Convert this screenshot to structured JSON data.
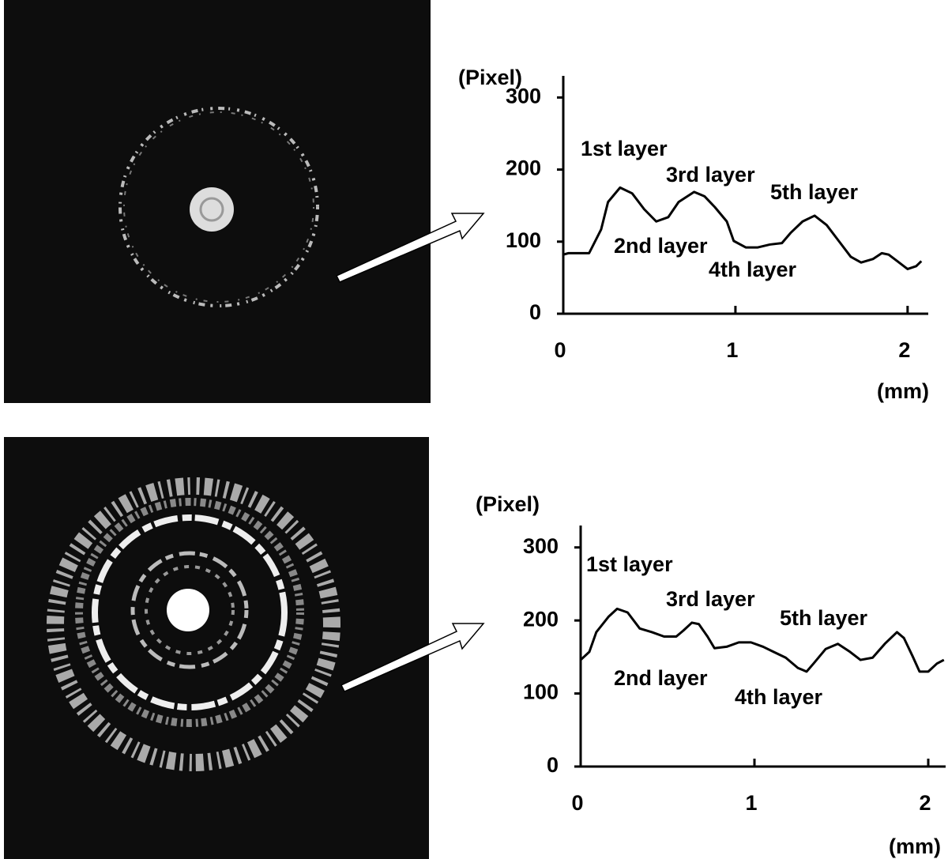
{
  "chart_data": [
    {
      "type": "line",
      "ylabel": "(Pixel)",
      "xlabel": "(mm)",
      "xlim": [
        0,
        2.12
      ],
      "ylim": [
        0,
        330
      ],
      "xticks": [
        0,
        1,
        2
      ],
      "yticks": [
        0,
        100,
        200,
        300
      ],
      "annotations": [
        "1st layer",
        "3rd layer",
        "5th layer",
        "2nd layer",
        "4th layer"
      ],
      "series": [
        {
          "color": "#000000",
          "x": [
            0,
            0.03,
            0.15,
            0.22,
            0.26,
            0.33,
            0.4,
            0.47,
            0.54,
            0.61,
            0.67,
            0.76,
            0.82,
            0.88,
            0.95,
            0.99,
            1.06,
            1.13,
            1.2,
            1.27,
            1.32,
            1.39,
            1.46,
            1.53,
            1.6,
            1.67,
            1.73,
            1.8,
            1.85,
            1.89,
            1.94,
            2.0,
            2.05,
            2.08
          ],
          "values": [
            82,
            84,
            84,
            117,
            155,
            175,
            167,
            145,
            128,
            134,
            155,
            169,
            163,
            148,
            128,
            101,
            92,
            92,
            96,
            98,
            112,
            128,
            136,
            123,
            101,
            79,
            71,
            76,
            84,
            82,
            73,
            62,
            66,
            73
          ]
        }
      ]
    },
    {
      "type": "line",
      "ylabel": "(Pixel)",
      "xlabel": "(mm)",
      "xlim": [
        0,
        2.1
      ],
      "ylim": [
        0,
        330
      ],
      "xticks": [
        0,
        1,
        2
      ],
      "yticks": [
        0,
        100,
        200,
        300
      ],
      "annotations": [
        "1st layer",
        "3rd layer",
        "5th layer",
        "2nd layer",
        "4th layer"
      ],
      "series": [
        {
          "color": "#000000",
          "x": [
            0,
            0.05,
            0.09,
            0.16,
            0.21,
            0.27,
            0.34,
            0.41,
            0.48,
            0.55,
            0.59,
            0.64,
            0.68,
            0.73,
            0.77,
            0.84,
            0.91,
            0.98,
            1.05,
            1.11,
            1.18,
            1.25,
            1.3,
            1.34,
            1.41,
            1.48,
            1.55,
            1.61,
            1.68,
            1.75,
            1.82,
            1.86,
            1.91,
            1.95,
            2.0,
            2.05,
            2.09
          ],
          "values": [
            146,
            157,
            184,
            205,
            216,
            211,
            189,
            184,
            178,
            178,
            186,
            197,
            195,
            178,
            162,
            164,
            170,
            170,
            164,
            157,
            149,
            135,
            130,
            141,
            161,
            168,
            157,
            146,
            149,
            168,
            184,
            176,
            151,
            130,
            130,
            141,
            146
          ]
        }
      ]
    }
  ]
}
